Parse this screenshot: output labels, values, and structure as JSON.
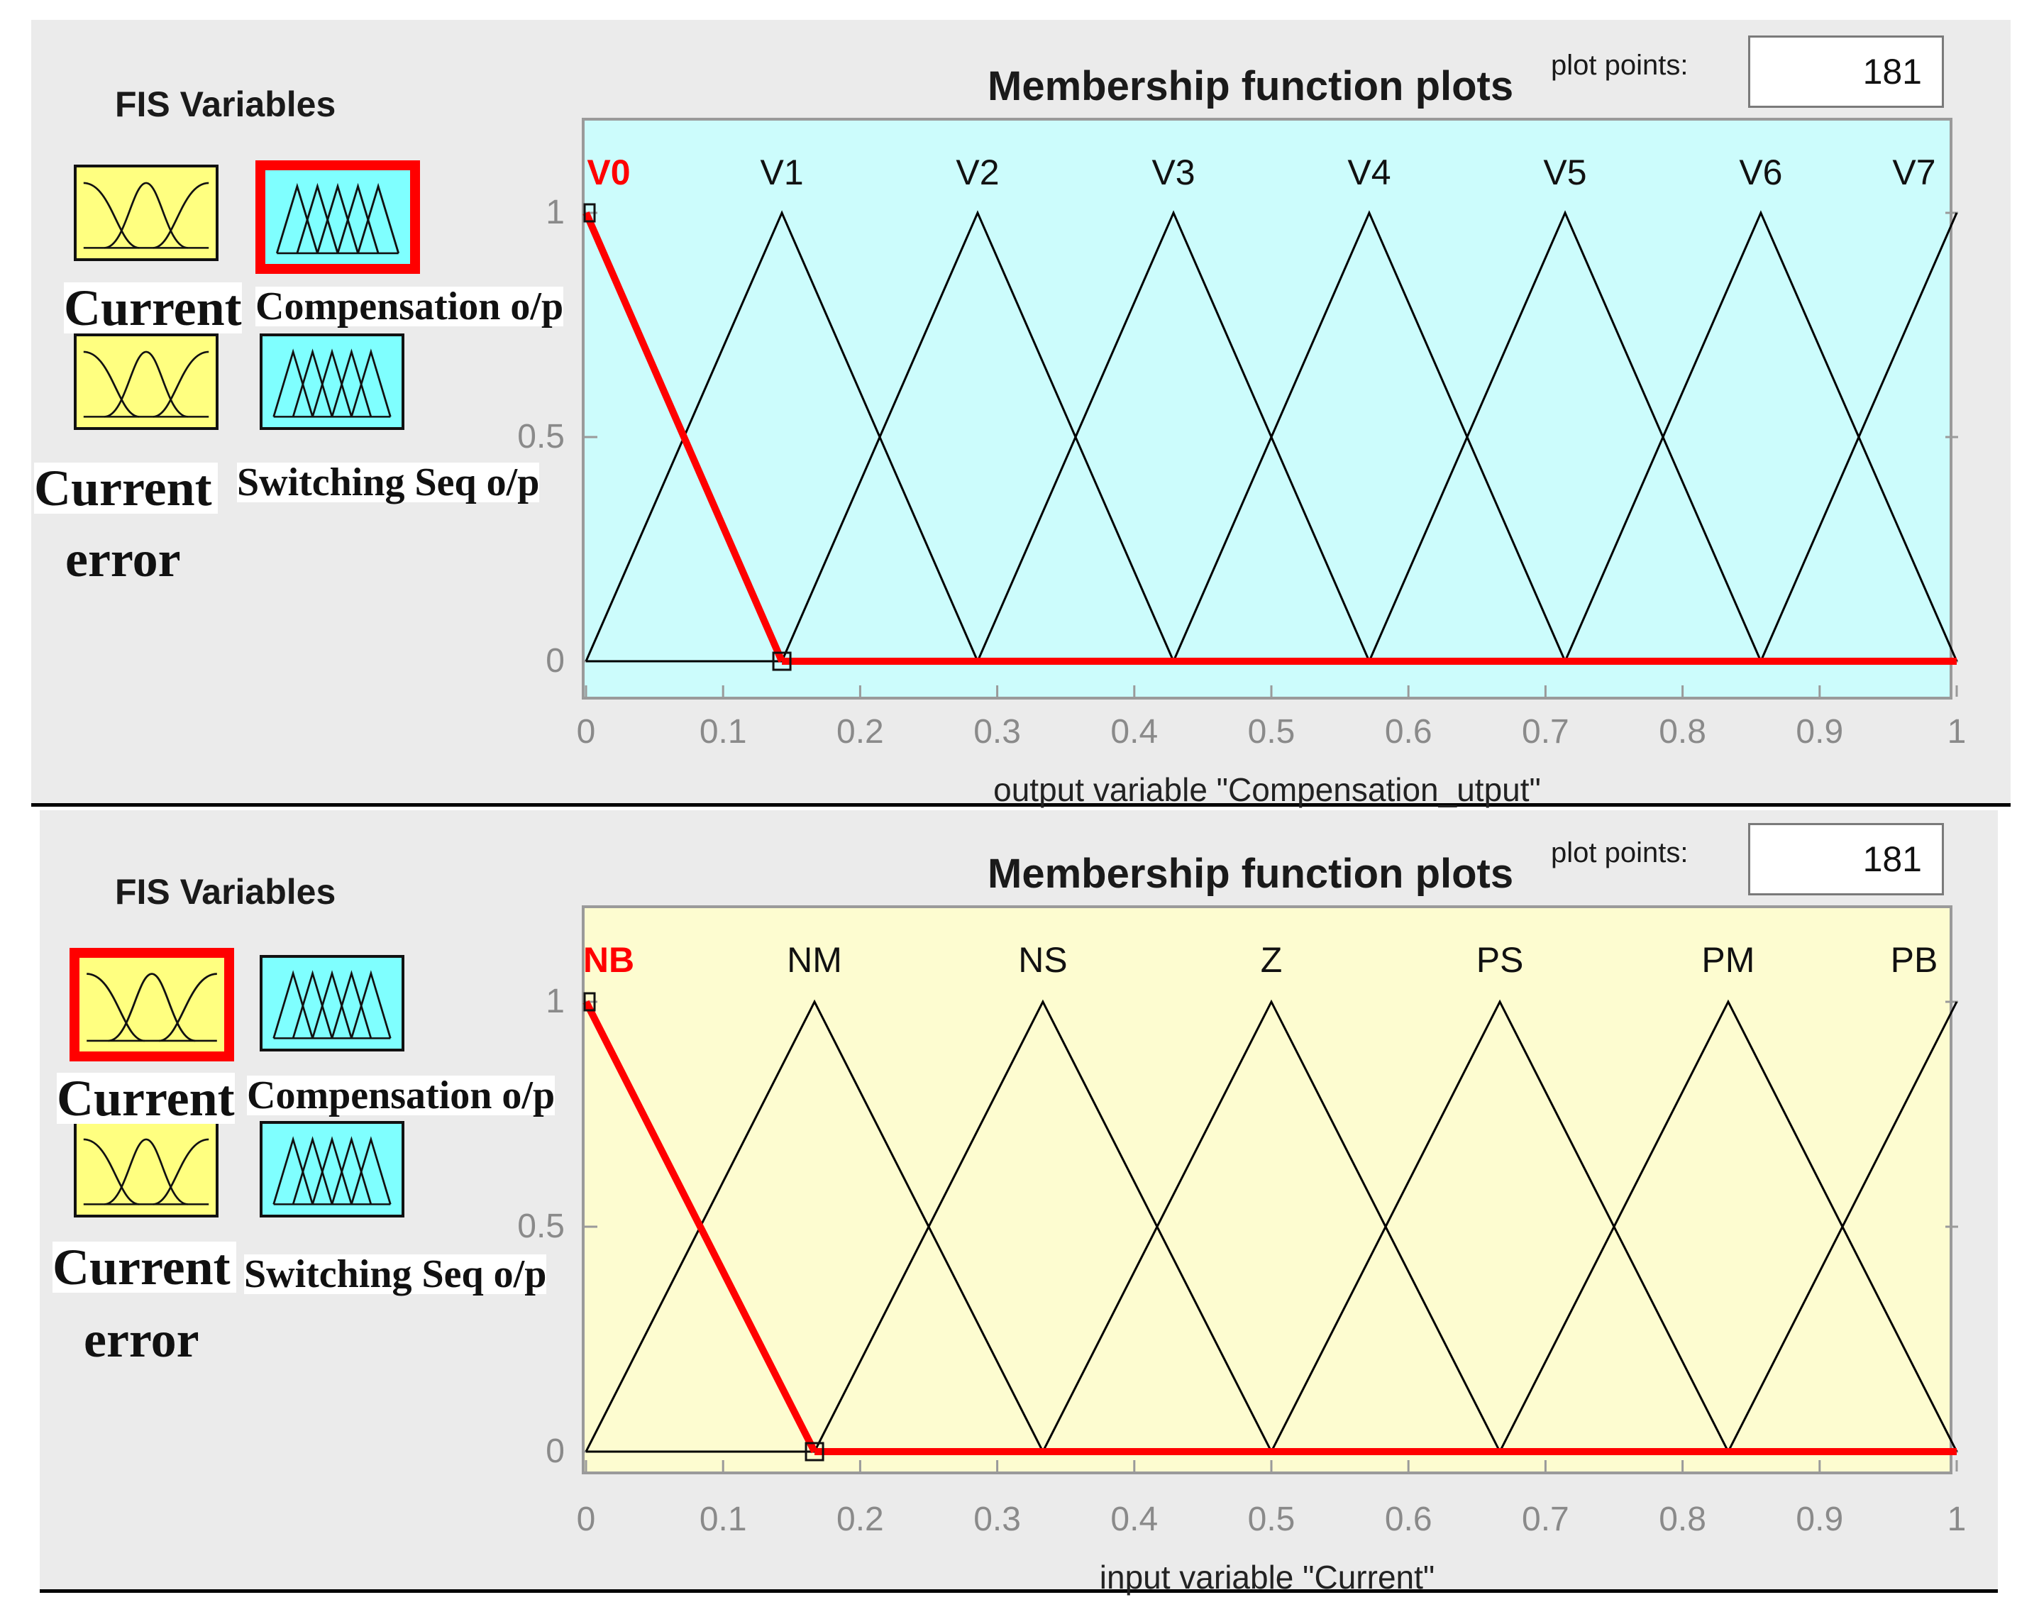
{
  "colors": {
    "output_plot_bg": "#ccfcfc",
    "input_plot_bg": "#fdfcd0",
    "input_tile": "#ffff80",
    "output_tile": "#7fffff",
    "selected_border": "#ff0000",
    "mf_line": "#000000",
    "active_mf": "#ff0000"
  },
  "panels": [
    {
      "fis_title": "FIS Variables",
      "tiles": [
        {
          "icon": "input-mf-icon",
          "kind": "input",
          "selected": false
        },
        {
          "icon": "output-mf-icon",
          "kind": "output",
          "selected": true
        },
        {
          "icon": "input-mf-icon",
          "kind": "input",
          "selected": false
        },
        {
          "icon": "output-mf-icon",
          "kind": "output",
          "selected": false
        }
      ],
      "labels": {
        "current_top": "Current",
        "compensation": "Compensation o/p",
        "current_bottom": "Current",
        "switching": "Switching Seq o/p",
        "error": "error"
      },
      "plot_title": "Membership function plots",
      "plot_points_label": "plot points:",
      "plot_points_value": "181",
      "axis_label": "output variable \"Compensation_utput\"",
      "yticks": [
        "1",
        "0.5",
        "0"
      ],
      "xticks": [
        "0",
        "0.1",
        "0.2",
        "0.3",
        "0.4",
        "0.5",
        "0.6",
        "0.7",
        "0.8",
        "0.9",
        "1"
      ],
      "chart_data": {
        "type": "line",
        "xlim": [
          0,
          1
        ],
        "ylim": [
          0,
          1
        ],
        "membership_functions": [
          {
            "name": "V0",
            "points": [
              [
                0,
                1
              ],
              [
                0.1429,
                0
              ]
            ],
            "active": true
          },
          {
            "name": "V1",
            "points": [
              [
                0,
                0
              ],
              [
                0.1429,
                1
              ],
              [
                0.2857,
                0
              ]
            ],
            "active": false
          },
          {
            "name": "V2",
            "points": [
              [
                0.1429,
                0
              ],
              [
                0.2857,
                1
              ],
              [
                0.4286,
                0
              ]
            ],
            "active": false
          },
          {
            "name": "V3",
            "points": [
              [
                0.2857,
                0
              ],
              [
                0.4286,
                1
              ],
              [
                0.5714,
                0
              ]
            ],
            "active": false
          },
          {
            "name": "V4",
            "points": [
              [
                0.4286,
                0
              ],
              [
                0.5714,
                1
              ],
              [
                0.7143,
                0
              ]
            ],
            "active": false
          },
          {
            "name": "V5",
            "points": [
              [
                0.5714,
                0
              ],
              [
                0.7143,
                1
              ],
              [
                0.8571,
                0
              ]
            ],
            "active": false
          },
          {
            "name": "V6",
            "points": [
              [
                0.7143,
                0
              ],
              [
                0.8571,
                1
              ],
              [
                1,
                0
              ]
            ],
            "active": false
          },
          {
            "name": "V7",
            "points": [
              [
                0.8571,
                0
              ],
              [
                1,
                1
              ]
            ],
            "active": false
          }
        ]
      }
    },
    {
      "fis_title": "FIS Variables",
      "tiles": [
        {
          "icon": "input-mf-icon",
          "kind": "input",
          "selected": true
        },
        {
          "icon": "output-mf-icon",
          "kind": "output",
          "selected": false
        },
        {
          "icon": "input-mf-icon",
          "kind": "input",
          "selected": false
        },
        {
          "icon": "output-mf-icon",
          "kind": "output",
          "selected": false
        }
      ],
      "labels": {
        "current_top": "Current",
        "compensation": "Compensation o/p",
        "current_bottom": "Current",
        "switching": "Switching Seq o/p",
        "error": "error"
      },
      "plot_title": "Membership function plots",
      "plot_points_label": "plot points:",
      "plot_points_value": "181",
      "axis_label": "input variable \"Current\"",
      "yticks": [
        "1",
        "0.5",
        "0"
      ],
      "xticks": [
        "0",
        "0.1",
        "0.2",
        "0.3",
        "0.4",
        "0.5",
        "0.6",
        "0.7",
        "0.8",
        "0.9",
        "1"
      ],
      "chart_data": {
        "type": "line",
        "xlim": [
          0,
          1
        ],
        "ylim": [
          0,
          1
        ],
        "membership_functions": [
          {
            "name": "NB",
            "points": [
              [
                0,
                1
              ],
              [
                0.1667,
                0
              ]
            ],
            "active": true
          },
          {
            "name": "NM",
            "points": [
              [
                0,
                0
              ],
              [
                0.1667,
                1
              ],
              [
                0.3333,
                0
              ]
            ],
            "active": false
          },
          {
            "name": "NS",
            "points": [
              [
                0.1667,
                0
              ],
              [
                0.3333,
                1
              ],
              [
                0.5,
                0
              ]
            ],
            "active": false
          },
          {
            "name": "Z",
            "points": [
              [
                0.3333,
                0
              ],
              [
                0.5,
                1
              ],
              [
                0.6667,
                0
              ]
            ],
            "active": false
          },
          {
            "name": "PS",
            "points": [
              [
                0.5,
                0
              ],
              [
                0.6667,
                1
              ],
              [
                0.8333,
                0
              ]
            ],
            "active": false
          },
          {
            "name": "PM",
            "points": [
              [
                0.6667,
                0
              ],
              [
                0.8333,
                1
              ],
              [
                1,
                0
              ]
            ],
            "active": false
          },
          {
            "name": "PB",
            "points": [
              [
                0.8333,
                0
              ],
              [
                1,
                1
              ]
            ],
            "active": false
          }
        ]
      }
    }
  ]
}
